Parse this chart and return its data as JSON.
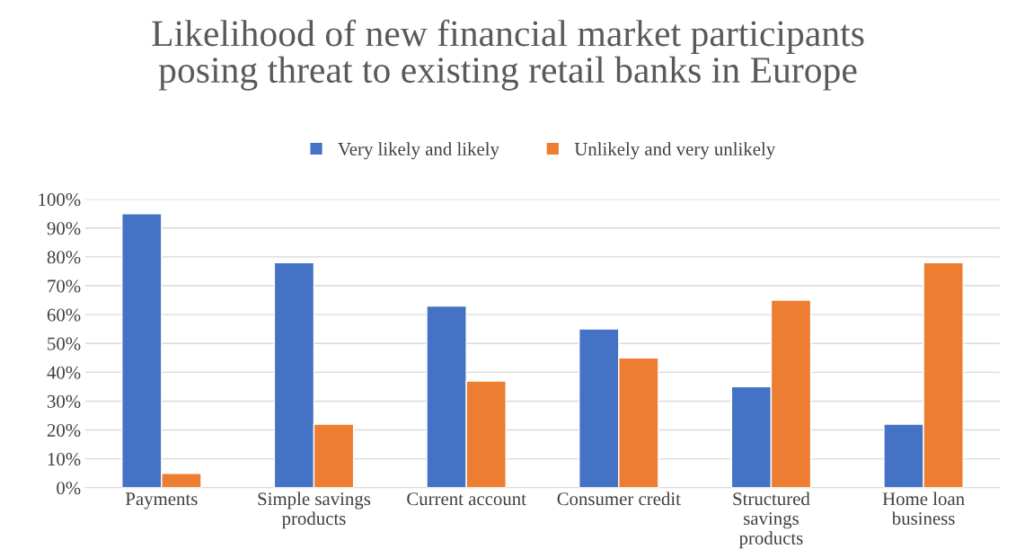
{
  "chart_data": {
    "type": "bar",
    "title": "Likelihood of new financial market participants posing threat to existing retail banks in Europe",
    "categories": [
      "Payments",
      "Simple savings products",
      "Current account",
      "Consumer credit",
      "Structured savings products",
      "Home loan business"
    ],
    "series": [
      {
        "name": "Very likely and likely",
        "color": "#4472c4",
        "values": [
          95,
          78,
          63,
          55,
          35,
          22
        ]
      },
      {
        "name": "Unlikely and very unlikely",
        "color": "#ed7d31",
        "values": [
          5,
          22,
          37,
          45,
          65,
          78
        ]
      }
    ],
    "ylim": [
      0,
      100
    ],
    "yticks": [
      {
        "value": 0,
        "label": "0%"
      },
      {
        "value": 10,
        "label": "10%"
      },
      {
        "value": 20,
        "label": "20%"
      },
      {
        "value": 30,
        "label": "30%"
      },
      {
        "value": 40,
        "label": "40%"
      },
      {
        "value": 50,
        "label": "50%"
      },
      {
        "value": 60,
        "label": "60%"
      },
      {
        "value": 70,
        "label": "70%"
      },
      {
        "value": 80,
        "label": "80%"
      },
      {
        "value": 90,
        "label": "90%"
      },
      {
        "value": 100,
        "label": "100%"
      }
    ],
    "grid": "y",
    "legend": "top"
  }
}
